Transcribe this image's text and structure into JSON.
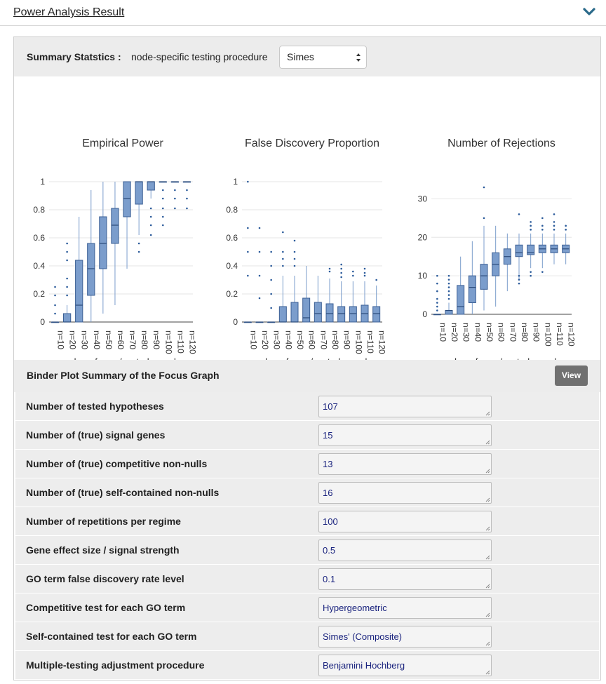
{
  "header": {
    "title": "Power Analysis Result",
    "toggle_icon": "chevron-down-icon"
  },
  "summary": {
    "label": "Summary Statstics :",
    "procedure_label": "node-specific testing procedure",
    "procedure_value": "Simes"
  },
  "charts": {
    "xlabel": "number of case/control samples"
  },
  "chart_data": [
    {
      "type": "box",
      "title": "Empirical Power",
      "xlabel": "number of case/control samples",
      "categories": [
        "n=10",
        "n=20",
        "n=30",
        "n=40",
        "n=50",
        "n=60",
        "n=70",
        "n=80",
        "n=90",
        "n=100",
        "n=110",
        "n=120"
      ],
      "ylim": [
        0,
        1
      ],
      "yticks": [
        "0",
        "0.2",
        "0.4",
        "0.6",
        "0.8",
        "1"
      ],
      "box_color": "#7b9dcc",
      "boxes": [
        {
          "lo": 0,
          "q1": 0,
          "med": 0,
          "q3": 0,
          "hi": 0,
          "out": [
            0.06,
            0.12,
            0.19,
            0.25
          ]
        },
        {
          "lo": 0,
          "q1": 0,
          "med": 0,
          "q3": 0.06,
          "hi": 0.12,
          "out": [
            0.19,
            0.25,
            0.31,
            0.44,
            0.5,
            0.56
          ]
        },
        {
          "lo": 0,
          "q1": 0,
          "med": 0.12,
          "q3": 0.44,
          "hi": 0.75,
          "out": []
        },
        {
          "lo": 0,
          "q1": 0.19,
          "med": 0.38,
          "q3": 0.56,
          "hi": 0.94,
          "out": []
        },
        {
          "lo": 0.06,
          "q1": 0.38,
          "med": 0.56,
          "q3": 0.75,
          "hi": 1,
          "out": []
        },
        {
          "lo": 0.12,
          "q1": 0.56,
          "med": 0.69,
          "q3": 0.81,
          "hi": 1,
          "out": []
        },
        {
          "lo": 0.38,
          "q1": 0.75,
          "med": 0.88,
          "q3": 1,
          "hi": 1,
          "out": []
        },
        {
          "lo": 0.62,
          "q1": 0.84,
          "med": 1,
          "q3": 1,
          "hi": 1,
          "out": [
            0.5,
            0.56
          ]
        },
        {
          "lo": 0.88,
          "q1": 0.94,
          "med": 1,
          "q3": 1,
          "hi": 1,
          "out": [
            0.62,
            0.69,
            0.75,
            0.81
          ]
        },
        {
          "lo": 1,
          "q1": 1,
          "med": 1,
          "q3": 1,
          "hi": 1,
          "out": [
            0.69,
            0.75,
            0.81,
            0.88,
            0.94
          ]
        },
        {
          "lo": 1,
          "q1": 1,
          "med": 1,
          "q3": 1,
          "hi": 1,
          "out": [
            0.81,
            0.88,
            0.94
          ]
        },
        {
          "lo": 1,
          "q1": 1,
          "med": 1,
          "q3": 1,
          "hi": 1,
          "out": [
            0.81,
            0.88,
            0.94
          ]
        }
      ]
    },
    {
      "type": "box",
      "title": "False Discovery Proportion",
      "xlabel": "number of case/control samples",
      "categories": [
        "n=10",
        "n=20",
        "n=30",
        "n=40",
        "n=50",
        "n=60",
        "n=70",
        "n=80",
        "n=90",
        "n=100",
        "n=110",
        "n=120"
      ],
      "ylim": [
        0,
        1
      ],
      "yticks": [
        "0",
        "0.2",
        "0.4",
        "0.6",
        "0.8",
        "1"
      ],
      "box_color": "#7b9dcc",
      "boxes": [
        {
          "lo": 0,
          "q1": 0,
          "med": 0,
          "q3": 0,
          "hi": 0,
          "out": [
            0.33,
            0.5,
            0.67,
            1
          ]
        },
        {
          "lo": 0,
          "q1": 0,
          "med": 0,
          "q3": 0,
          "hi": 0,
          "out": [
            0.17,
            0.33,
            0.5,
            0.67
          ]
        },
        {
          "lo": 0,
          "q1": 0,
          "med": 0,
          "q3": 0,
          "hi": 0,
          "out": [
            0.1,
            0.2,
            0.3,
            0.4,
            0.5
          ]
        },
        {
          "lo": 0,
          "q1": 0,
          "med": 0,
          "q3": 0.11,
          "hi": 0.33,
          "out": [
            0.4,
            0.45,
            0.5,
            0.64
          ]
        },
        {
          "lo": 0,
          "q1": 0,
          "med": 0,
          "q3": 0.14,
          "hi": 0.33,
          "out": [
            0.4,
            0.45,
            0.5,
            0.58
          ]
        },
        {
          "lo": 0,
          "q1": 0,
          "med": 0.03,
          "q3": 0.17,
          "hi": 0.4,
          "out": []
        },
        {
          "lo": 0,
          "q1": 0,
          "med": 0.06,
          "q3": 0.14,
          "hi": 0.33,
          "out": []
        },
        {
          "lo": 0,
          "q1": 0,
          "med": 0.06,
          "q3": 0.13,
          "hi": 0.31,
          "out": [
            0.36,
            0.38
          ]
        },
        {
          "lo": 0,
          "q1": 0,
          "med": 0.06,
          "q3": 0.11,
          "hi": 0.29,
          "out": [
            0.32,
            0.35,
            0.38,
            0.41
          ]
        },
        {
          "lo": 0,
          "q1": 0,
          "med": 0.06,
          "q3": 0.11,
          "hi": 0.29,
          "out": [
            0.33,
            0.36
          ]
        },
        {
          "lo": 0,
          "q1": 0,
          "med": 0.06,
          "q3": 0.12,
          "hi": 0.29,
          "out": [
            0.33,
            0.35,
            0.38
          ]
        },
        {
          "lo": 0,
          "q1": 0,
          "med": 0.06,
          "q3": 0.11,
          "hi": 0.26,
          "out": [
            0.3
          ]
        }
      ]
    },
    {
      "type": "box",
      "title": "Number of Rejections",
      "xlabel": "number of case/control samples",
      "categories": [
        "n=10",
        "n=20",
        "n=30",
        "n=40",
        "n=50",
        "n=60",
        "n=70",
        "n=80",
        "n=90",
        "n=100",
        "n=110",
        "n=120"
      ],
      "ylim": [
        0,
        33
      ],
      "yticks": [
        "0",
        "10",
        "20",
        "30"
      ],
      "ytick_values": [
        0,
        10,
        20,
        30
      ],
      "box_color": "#7b9dcc",
      "boxes": [
        {
          "lo": 0,
          "q1": 0,
          "med": 0,
          "q3": 0,
          "hi": 0,
          "out": [
            1,
            2,
            3,
            4,
            6,
            8,
            10
          ]
        },
        {
          "lo": 0,
          "q1": 0,
          "med": 1,
          "q3": 1,
          "hi": 3,
          "out": [
            4,
            5,
            6,
            7,
            8,
            9,
            10
          ]
        },
        {
          "lo": 0,
          "q1": 0,
          "med": 2,
          "q3": 7.5,
          "hi": 15,
          "out": []
        },
        {
          "lo": 0,
          "q1": 3,
          "med": 7,
          "q3": 10,
          "hi": 19,
          "out": []
        },
        {
          "lo": 1,
          "q1": 6.5,
          "med": 10,
          "q3": 13,
          "hi": 23,
          "out": [
            25,
            33
          ]
        },
        {
          "lo": 2,
          "q1": 10,
          "med": 13,
          "q3": 16,
          "hi": 23,
          "out": []
        },
        {
          "lo": 6,
          "q1": 13,
          "med": 15,
          "q3": 17,
          "hi": 21,
          "out": []
        },
        {
          "lo": 9,
          "q1": 15,
          "med": 16,
          "q3": 18,
          "hi": 21,
          "out": [
            8,
            9,
            10,
            26
          ]
        },
        {
          "lo": 12,
          "q1": 15.5,
          "med": 16,
          "q3": 18,
          "hi": 21,
          "out": [
            10,
            11,
            22,
            23,
            24
          ]
        },
        {
          "lo": 12,
          "q1": 16,
          "med": 17,
          "q3": 18,
          "hi": 21,
          "out": [
            11,
            22,
            23,
            25
          ]
        },
        {
          "lo": 13,
          "q1": 16,
          "med": 17,
          "q3": 18,
          "hi": 21,
          "out": [
            22,
            23,
            24,
            26
          ]
        },
        {
          "lo": 13,
          "q1": 16,
          "med": 17,
          "q3": 18,
          "hi": 21,
          "out": [
            22,
            23
          ]
        }
      ]
    }
  ],
  "binder": {
    "title": "Binder Plot Summary of the Focus Graph",
    "view_label": "View"
  },
  "rows": [
    {
      "label": "Number of tested hypotheses",
      "value": "107"
    },
    {
      "label": "Number of (true) signal genes",
      "value": "15"
    },
    {
      "label": "Number of (true) competitive non-nulls",
      "value": "13"
    },
    {
      "label": "Number of (true) self-contained non-nulls",
      "value": "16"
    },
    {
      "label": "Number of repetitions per regime",
      "value": "100"
    },
    {
      "label": "Gene effect size / signal strength",
      "value": "0.5"
    },
    {
      "label": "GO term false discovery rate level",
      "value": "0.1"
    },
    {
      "label": "Competitive test for each GO term",
      "value": "Hypergeometric"
    },
    {
      "label": "Self-contained test for each GO term",
      "value": "Simes' (Composite)"
    },
    {
      "label": "Multiple-testing adjustment procedure",
      "value": "Benjamini Hochberg"
    }
  ]
}
